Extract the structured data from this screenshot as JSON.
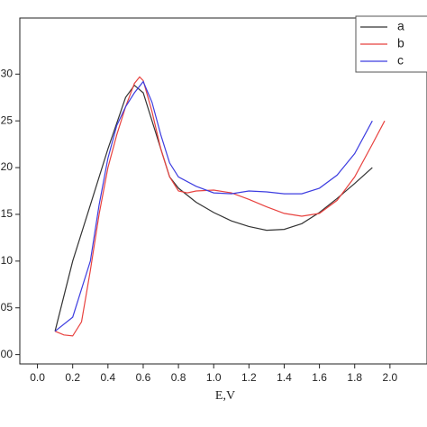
{
  "chart_data": {
    "type": "line",
    "xlabel": "E,V",
    "xlim": [
      -0.1,
      2.2
    ],
    "ylim": [
      -1,
      36
    ],
    "xticks": [
      {
        "value": 0,
        "label": "0.0"
      },
      0.2,
      0.4,
      0.6,
      0.8,
      {
        "value": 1,
        "label": "1.0"
      },
      1.2,
      1.4,
      1.6,
      1.8,
      {
        "value": 2,
        "label": "2.0"
      }
    ],
    "yticks": [
      {
        "value": 0,
        "label": "00"
      },
      {
        "value": 5,
        "label": "05"
      },
      10,
      15,
      20,
      25,
      30
    ],
    "legend": "upper right",
    "series": [
      {
        "name": "a",
        "color": "#333333",
        "x": [
          0.1,
          0.2,
          0.3,
          0.4,
          0.5,
          0.55,
          0.6,
          0.7,
          0.75,
          0.8,
          0.9,
          1.0,
          1.1,
          1.2,
          1.3,
          1.4,
          1.5,
          1.6,
          1.7,
          1.8,
          1.9
        ],
        "values": [
          2.5,
          10,
          16,
          22,
          27.5,
          28.8,
          28,
          22,
          19,
          17.8,
          16.3,
          15.2,
          14.3,
          13.7,
          13.3,
          13.4,
          14,
          15.2,
          16.7,
          18.3,
          20
        ]
      },
      {
        "name": "b",
        "color": "#e8423f",
        "x": [
          0.1,
          0.15,
          0.2,
          0.25,
          0.3,
          0.35,
          0.4,
          0.45,
          0.5,
          0.55,
          0.58,
          0.6,
          0.65,
          0.7,
          0.75,
          0.8,
          0.85,
          0.9,
          1.0,
          1.1,
          1.2,
          1.3,
          1.4,
          1.5,
          1.6,
          1.7,
          1.8,
          1.9,
          1.97
        ],
        "values": [
          2.5,
          2.1,
          2.0,
          3.5,
          9,
          15,
          20,
          23.5,
          26.5,
          29,
          29.7,
          29.3,
          26,
          22,
          19,
          17.5,
          17.3,
          17.5,
          17.6,
          17.3,
          16.6,
          15.8,
          15.1,
          14.8,
          15.1,
          16.5,
          19,
          22.5,
          25
        ]
      },
      {
        "name": "c",
        "color": "#3d3de0",
        "x": [
          0.1,
          0.2,
          0.3,
          0.35,
          0.4,
          0.45,
          0.5,
          0.55,
          0.6,
          0.65,
          0.7,
          0.75,
          0.8,
          0.9,
          1.0,
          1.1,
          1.2,
          1.3,
          1.4,
          1.5,
          1.6,
          1.7,
          1.8,
          1.9
        ],
        "values": [
          2.5,
          4,
          10,
          16,
          21,
          24.5,
          26.5,
          28,
          29.2,
          27,
          23.5,
          20.5,
          19,
          18,
          17.3,
          17.2,
          17.5,
          17.4,
          17.2,
          17.2,
          17.8,
          19.2,
          21.5,
          25
        ]
      }
    ]
  }
}
